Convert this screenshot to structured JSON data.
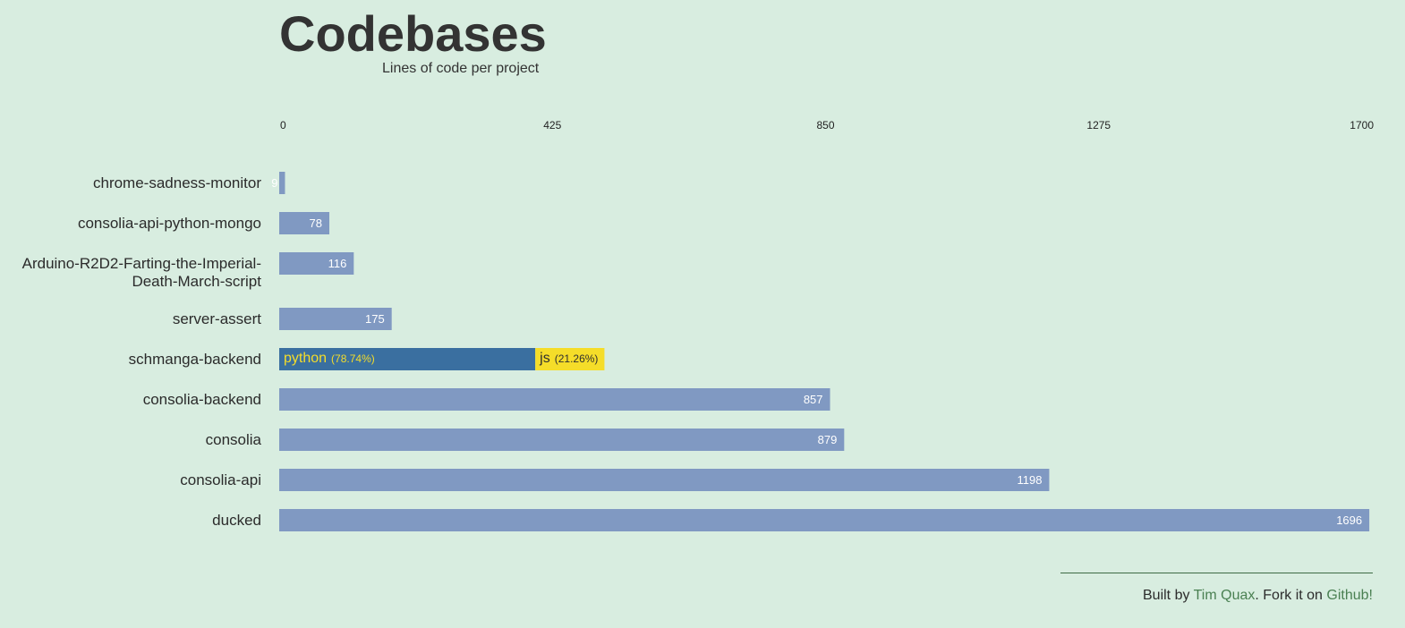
{
  "header": {
    "title": "Codebases",
    "subtitle": "Lines of code per project"
  },
  "chart_data": {
    "type": "bar",
    "orientation": "horizontal",
    "title": "Codebases",
    "subtitle": "Lines of code per project",
    "xlim": [
      0,
      1700
    ],
    "xticks": [
      "0",
      "425",
      "850",
      "1275",
      "1700"
    ],
    "categories": [
      "chrome-sadness-monitor",
      "consolia-api-python-mongo",
      "Arduino-R2D2-Farting-the-Imperial-Death-March-script",
      "server-assert",
      "schmanga-backend",
      "consolia-backend",
      "consolia",
      "consolia-api",
      "ducked"
    ],
    "category_label_lines": [
      [
        "chrome-sadness-monitor"
      ],
      [
        "consolia-api-python-mongo"
      ],
      [
        "Arduino-R2D2-Farting-the-Imperial-",
        "Death-March-script"
      ],
      [
        "server-assert"
      ],
      [
        "schmanga-backend"
      ],
      [
        "consolia-backend"
      ],
      [
        "consolia"
      ],
      [
        "consolia-api"
      ],
      [
        "ducked"
      ]
    ],
    "values": [
      9,
      78,
      116,
      175,
      506,
      857,
      879,
      1198,
      1696
    ],
    "value_labels": [
      "9",
      "78",
      "116",
      "175",
      "",
      "857",
      "879",
      "1198",
      "1696"
    ],
    "highlighted_index": 4,
    "breakdown": [
      {
        "name": "python",
        "percent_label": "(78.74%)",
        "fraction": 0.7874,
        "color": "#3a6fa0"
      },
      {
        "name": "js",
        "percent_label": "(21.26%)",
        "fraction": 0.2126,
        "color": "#f5dd29"
      }
    ],
    "bar_color": "#8099c2",
    "grid": false
  },
  "footer": {
    "prefix": "Built by ",
    "author": "Tim Quax",
    "middle": ". Fork it on ",
    "link": "Github!"
  }
}
